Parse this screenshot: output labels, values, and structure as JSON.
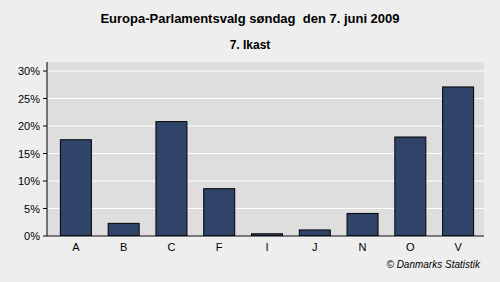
{
  "chart_data": {
    "type": "bar",
    "title": "Europa-Parlamentsvalg søndag  den 7. juni 2009",
    "subtitle": "7. Ikast",
    "source": "© Danmarks Statistik",
    "categories": [
      "A",
      "B",
      "C",
      "F",
      "I",
      "J",
      "N",
      "O",
      "V"
    ],
    "values": [
      17.5,
      2.3,
      20.8,
      8.6,
      0.4,
      1.1,
      4.1,
      18.0,
      27.1
    ],
    "color": "#2f4468",
    "ylim": [
      0,
      30
    ],
    "yticks": [
      {
        "value": 0,
        "label": "0%"
      },
      {
        "value": 5,
        "label": "5%"
      },
      {
        "value": 10,
        "label": "10%"
      },
      {
        "value": 15,
        "label": "15%"
      },
      {
        "value": 20,
        "label": "20%"
      },
      {
        "value": 25,
        "label": "25%"
      },
      {
        "value": 30,
        "label": "30%"
      }
    ],
    "grid": true
  }
}
